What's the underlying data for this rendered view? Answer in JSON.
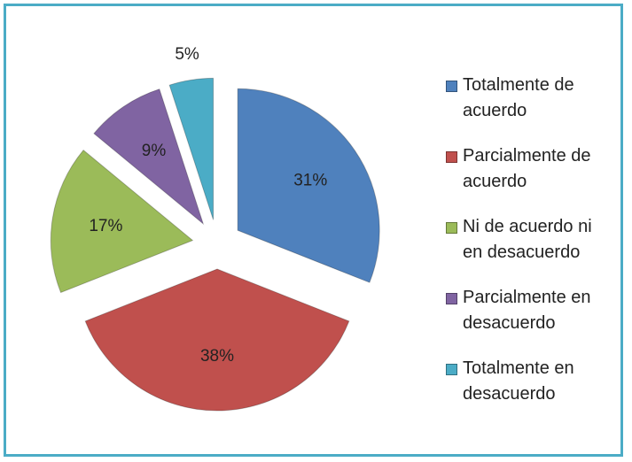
{
  "chart_data": {
    "type": "pie",
    "categories": [
      "Totalmente de acuerdo",
      "Parcialmente de acuerdo",
      "Ni de acuerdo ni en desacuerdo",
      "Parcialmente en desacuerdo",
      "Totalmente en desacuerdo"
    ],
    "values": [
      31,
      38,
      17,
      9,
      5
    ],
    "value_labels": [
      "31%",
      "38%",
      "17%",
      "9%",
      "5%"
    ],
    "colors": [
      "#4f81bd",
      "#c0504d",
      "#9bbb59",
      "#8064a2",
      "#4bacc6"
    ],
    "legend": "right"
  }
}
